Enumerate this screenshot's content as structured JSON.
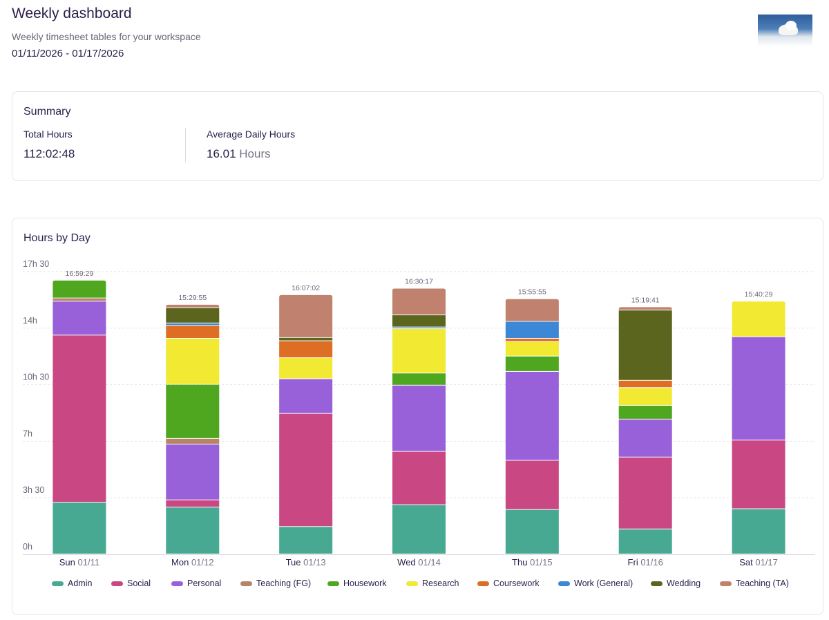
{
  "header": {
    "title": "Weekly dashboard",
    "subtitle": "Weekly timesheet tables for your workspace",
    "date_range": "01/11/2026 - 01/17/2026"
  },
  "summary": {
    "title": "Summary",
    "total_label": "Total Hours",
    "total_value": "112:02:48",
    "avg_label": "Average Daily Hours",
    "avg_value": "16.01",
    "avg_unit": "Hours"
  },
  "chart_data": {
    "type": "bar",
    "stacked": true,
    "title": "Hours by Day",
    "xlabel": "",
    "ylabel": "",
    "ylim": [
      0,
      17.5
    ],
    "y_ticks": [
      {
        "value": 0,
        "label": "0h"
      },
      {
        "value": 3.5,
        "label": "3h 30"
      },
      {
        "value": 7,
        "label": "7h"
      },
      {
        "value": 10.5,
        "label": "10h 30"
      },
      {
        "value": 14,
        "label": "14h"
      },
      {
        "value": 17.5,
        "label": "17h 30"
      }
    ],
    "grid": true,
    "legend_position": "bottom",
    "categories": [
      {
        "day": "Sun",
        "date": "01/11"
      },
      {
        "day": "Mon",
        "date": "01/12"
      },
      {
        "day": "Tue",
        "date": "01/13"
      },
      {
        "day": "Wed",
        "date": "01/14"
      },
      {
        "day": "Thu",
        "date": "01/15"
      },
      {
        "day": "Fri",
        "date": "01/16"
      },
      {
        "day": "Sat",
        "date": "01/17"
      }
    ],
    "totals": [
      "16:59:29",
      "15:29:55",
      "16:07:02",
      "16:30:17",
      "15:55:55",
      "15:19:41",
      "15:40:29"
    ],
    "series": [
      {
        "name": "Admin",
        "color": "#48a992",
        "values": [
          3.2,
          2.9,
          1.7,
          3.05,
          2.75,
          1.55,
          2.8
        ]
      },
      {
        "name": "Social",
        "color": "#c94883",
        "values": [
          10.35,
          0.45,
          7.0,
          3.3,
          3.05,
          4.45,
          4.25
        ]
      },
      {
        "name": "Personal",
        "color": "#9961d9",
        "values": [
          2.1,
          3.45,
          2.15,
          4.1,
          5.5,
          2.35,
          6.4
        ]
      },
      {
        "name": "Teaching (FG)",
        "color": "#b88467",
        "values": [
          0.2,
          0.35,
          0,
          0,
          0,
          0,
          0
        ]
      },
      {
        "name": "Housework",
        "color": "#4fa61f",
        "values": [
          1.1,
          3.35,
          0,
          0.75,
          0.95,
          0.85,
          0
        ]
      },
      {
        "name": "Research",
        "color": "#f1e932",
        "values": [
          0,
          2.85,
          1.3,
          2.75,
          0.9,
          1.1,
          2.2
        ]
      },
      {
        "name": "Coursework",
        "color": "#dd6e24",
        "values": [
          0,
          0.8,
          1.05,
          0,
          0.2,
          0.45,
          0
        ]
      },
      {
        "name": "Work (General)",
        "color": "#3c87d6",
        "values": [
          0,
          0.15,
          0,
          0.1,
          1.05,
          0,
          0
        ]
      },
      {
        "name": "Wedding",
        "color": "#5b651d",
        "values": [
          0,
          0.95,
          0.2,
          0.75,
          0,
          4.35,
          0
        ]
      },
      {
        "name": "Teaching (TA)",
        "color": "#c0816e",
        "values": [
          0,
          0.2,
          2.65,
          1.65,
          1.4,
          0.2,
          0
        ]
      }
    ]
  }
}
